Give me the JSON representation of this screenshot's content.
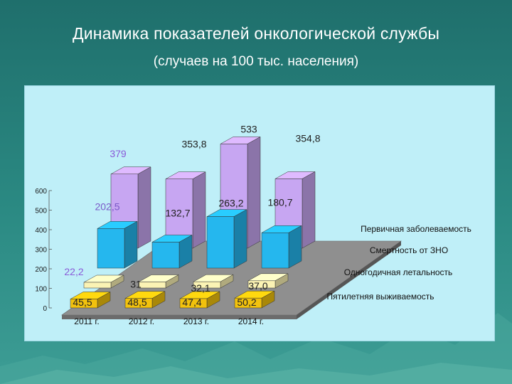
{
  "slide": {
    "title": "Динамика показателей онкологической службы",
    "subtitle": "(случаев на 100 тыс. населения)"
  },
  "chart_data": {
    "type": "bar",
    "title": "",
    "categories": [
      "2011 г.",
      "2012 г.",
      "2013 г.",
      "2014 г."
    ],
    "ylim": [
      0,
      600
    ],
    "yticks": [
      "0",
      "100",
      "200",
      "300",
      "400",
      "500",
      "600"
    ],
    "series": [
      {
        "name": "Первичная заболеваемость",
        "values": [
          379,
          353.8,
          533,
          354.8
        ],
        "labels": [
          "379",
          "353,8",
          "533",
          "354,8"
        ],
        "color": "#c7a6f2"
      },
      {
        "name": "Смертность от ЗНО",
        "values": [
          202.5,
          132.7,
          263.2,
          180.7
        ],
        "labels": [
          "202,5",
          "132,7",
          "263,2",
          "180,7"
        ],
        "color": "#25b7ee"
      },
      {
        "name": "Одногодичная летальность",
        "values": [
          22.2,
          31,
          32.1,
          37.0
        ],
        "labels": [
          "22,2",
          "31",
          "32,1",
          "37,0"
        ],
        "color": "#fbf3b4"
      },
      {
        "name": "Пятилетняя выживаемость",
        "values": [
          45.5,
          48.5,
          47.4,
          50.2
        ],
        "labels": [
          "45,5",
          "48,5",
          "47,4",
          "50,2"
        ],
        "color": "#f2c20d"
      }
    ],
    "colors": {
      "axis_text": "#1a1a1a",
      "floor": "#8f8f8f",
      "floor_front": "#6c6c6c",
      "panel": "#bfeff8"
    }
  }
}
